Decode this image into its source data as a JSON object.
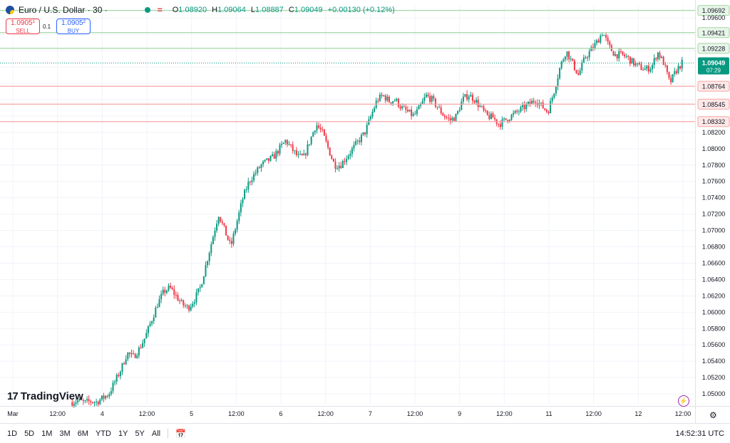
{
  "header": {
    "symbol": "Euro / U.S. Dollar · 30 ·",
    "ohlc": {
      "o_label": "O",
      "o": "1.08920",
      "h_label": "H",
      "h": "1.09064",
      "l_label": "L",
      "l": "1.08887",
      "c_label": "C",
      "c": "1.09049",
      "change": "+0.00130 (+0.12%)"
    },
    "status_icons": [
      "market-open-dot-icon",
      "equals-icon"
    ]
  },
  "trade": {
    "sell_price": "1.0905¹",
    "sell_label": "SELL",
    "spread": "0.1",
    "buy_price": "1.0905²",
    "buy_label": "BUY"
  },
  "colors": {
    "up": "#089981",
    "down": "#f23645",
    "resistance": "#a5d6a7",
    "support": "#f5a6a6",
    "price_tag": "#089981"
  },
  "logo": {
    "text": "TradingView"
  },
  "range_buttons": [
    "1D",
    "5D",
    "1M",
    "3M",
    "6M",
    "YTD",
    "1Y",
    "5Y",
    "All"
  ],
  "clock": "14:52:31 UTC",
  "chart_data": {
    "type": "candlestick",
    "interval": "30",
    "y_ticks": [
      1.096,
      1.094,
      1.092,
      1.09,
      1.088,
      1.086,
      1.084,
      1.082,
      1.08,
      1.078,
      1.076,
      1.074,
      1.072,
      1.07,
      1.068,
      1.066,
      1.064,
      1.062,
      1.06,
      1.058,
      1.056,
      1.054,
      1.052,
      1.05
    ],
    "ylim": [
      1.0487,
      1.0975
    ],
    "x_ticks": [
      "Mar",
      "12:00",
      "4",
      "12:00",
      "5",
      "12:00",
      "6",
      "12:00",
      "7",
      "12:00",
      "9",
      "12:00",
      "11",
      "12:00",
      "12",
      "12:00"
    ],
    "levels": [
      {
        "value": 1.09692,
        "label": "1.09692",
        "kind": "resistance"
      },
      {
        "value": 1.09421,
        "label": "1.09421",
        "kind": "resistance"
      },
      {
        "value": 1.09228,
        "label": "1.09228",
        "kind": "resistance"
      },
      {
        "value": 1.08764,
        "label": "1.08764",
        "kind": "support"
      },
      {
        "value": 1.08545,
        "label": "1.08545",
        "kind": "support"
      },
      {
        "value": 1.08332,
        "label": "1.08332",
        "kind": "support"
      }
    ],
    "current_price": {
      "value": 1.09049,
      "label": "1.09049",
      "countdown": "07:29"
    },
    "path": [
      1.049,
      1.0492,
      1.0489,
      1.0491,
      1.049,
      1.0495,
      1.05,
      1.0515,
      1.053,
      1.055,
      1.0545,
      1.0555,
      1.057,
      1.059,
      1.061,
      1.0625,
      1.063,
      1.062,
      1.061,
      1.0605,
      1.0615,
      1.063,
      1.066,
      1.069,
      1.072,
      1.07,
      1.068,
      1.071,
      1.074,
      1.076,
      1.077,
      1.078,
      1.0785,
      1.079,
      1.08,
      1.081,
      1.08,
      1.079,
      1.079,
      1.081,
      1.083,
      1.082,
      1.08,
      1.078,
      1.078,
      1.079,
      1.08,
      1.081,
      1.082,
      1.084,
      1.086,
      1.0865,
      1.0858,
      1.086,
      1.085,
      1.0845,
      1.084,
      1.085,
      1.0865,
      1.086,
      1.085,
      1.084,
      1.0835,
      1.084,
      1.086,
      1.0866,
      1.086,
      1.085,
      1.084,
      1.0838,
      1.083,
      1.0835,
      1.084,
      1.0845,
      1.085,
      1.0855,
      1.086,
      1.0852,
      1.0845,
      1.087,
      1.09,
      1.092,
      1.0905,
      1.089,
      1.091,
      1.092,
      1.093,
      1.0943,
      1.0925,
      1.0915,
      1.0915,
      1.0912,
      1.0905,
      1.09,
      1.0897,
      1.09,
      1.0918,
      1.0905,
      1.088,
      1.0895,
      1.0905
    ],
    "candles_count": 330,
    "seed": 7
  }
}
